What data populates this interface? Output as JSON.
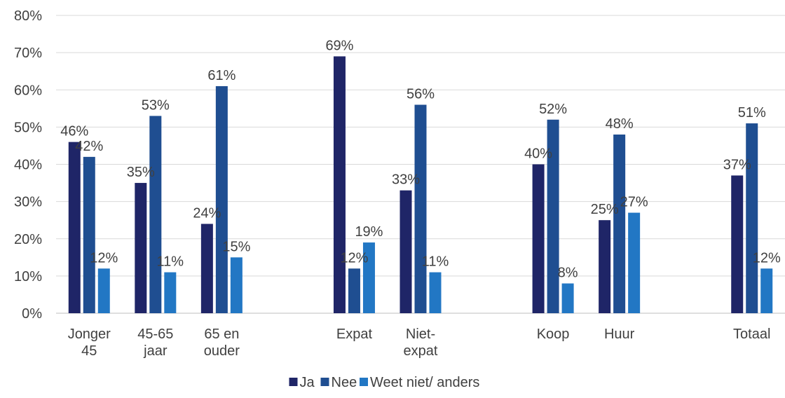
{
  "chart_data": {
    "type": "bar",
    "categories": [
      [
        "Jonger",
        "45"
      ],
      [
        "45-65",
        "jaar"
      ],
      [
        "65 en",
        "ouder"
      ],
      [],
      [
        "Expat"
      ],
      [
        "Niet-",
        "expat"
      ],
      [],
      [
        "Koop"
      ],
      [
        "Huur"
      ],
      [],
      [
        "Totaal"
      ]
    ],
    "series": [
      {
        "name": "Ja",
        "color": "#1f2567",
        "values": [
          46,
          35,
          24,
          null,
          69,
          33,
          null,
          40,
          25,
          null,
          37
        ],
        "labels": [
          "46%",
          "35%",
          "24%",
          "",
          "69%",
          "33%",
          "",
          "40%",
          "25%",
          "",
          "37%"
        ]
      },
      {
        "name": "Nee",
        "color": "#1f4e91",
        "values": [
          42,
          53,
          61,
          null,
          12,
          56,
          null,
          52,
          48,
          null,
          51
        ],
        "labels": [
          "42%",
          "53%",
          "61%",
          "",
          "12%",
          "56%",
          "",
          "52%",
          "48%",
          "",
          "51%"
        ]
      },
      {
        "name": "Weet niet/ anders",
        "color": "#2277c4",
        "values": [
          12,
          11,
          15,
          null,
          19,
          11,
          null,
          8,
          27,
          null,
          12
        ],
        "labels": [
          "12%",
          "11%",
          "15%",
          "",
          "19%",
          "11%",
          "",
          "8%",
          "27%",
          "",
          "12%"
        ]
      }
    ],
    "ylim": [
      0,
      80
    ],
    "yticks": [
      0,
      10,
      20,
      30,
      40,
      50,
      60,
      70,
      80
    ],
    "ytick_labels": [
      "0%",
      "10%",
      "20%",
      "30%",
      "40%",
      "50%",
      "60%",
      "70%",
      "80%"
    ],
    "title": "",
    "xlabel": "",
    "ylabel": "",
    "grid": true,
    "legend_position": "bottom"
  }
}
